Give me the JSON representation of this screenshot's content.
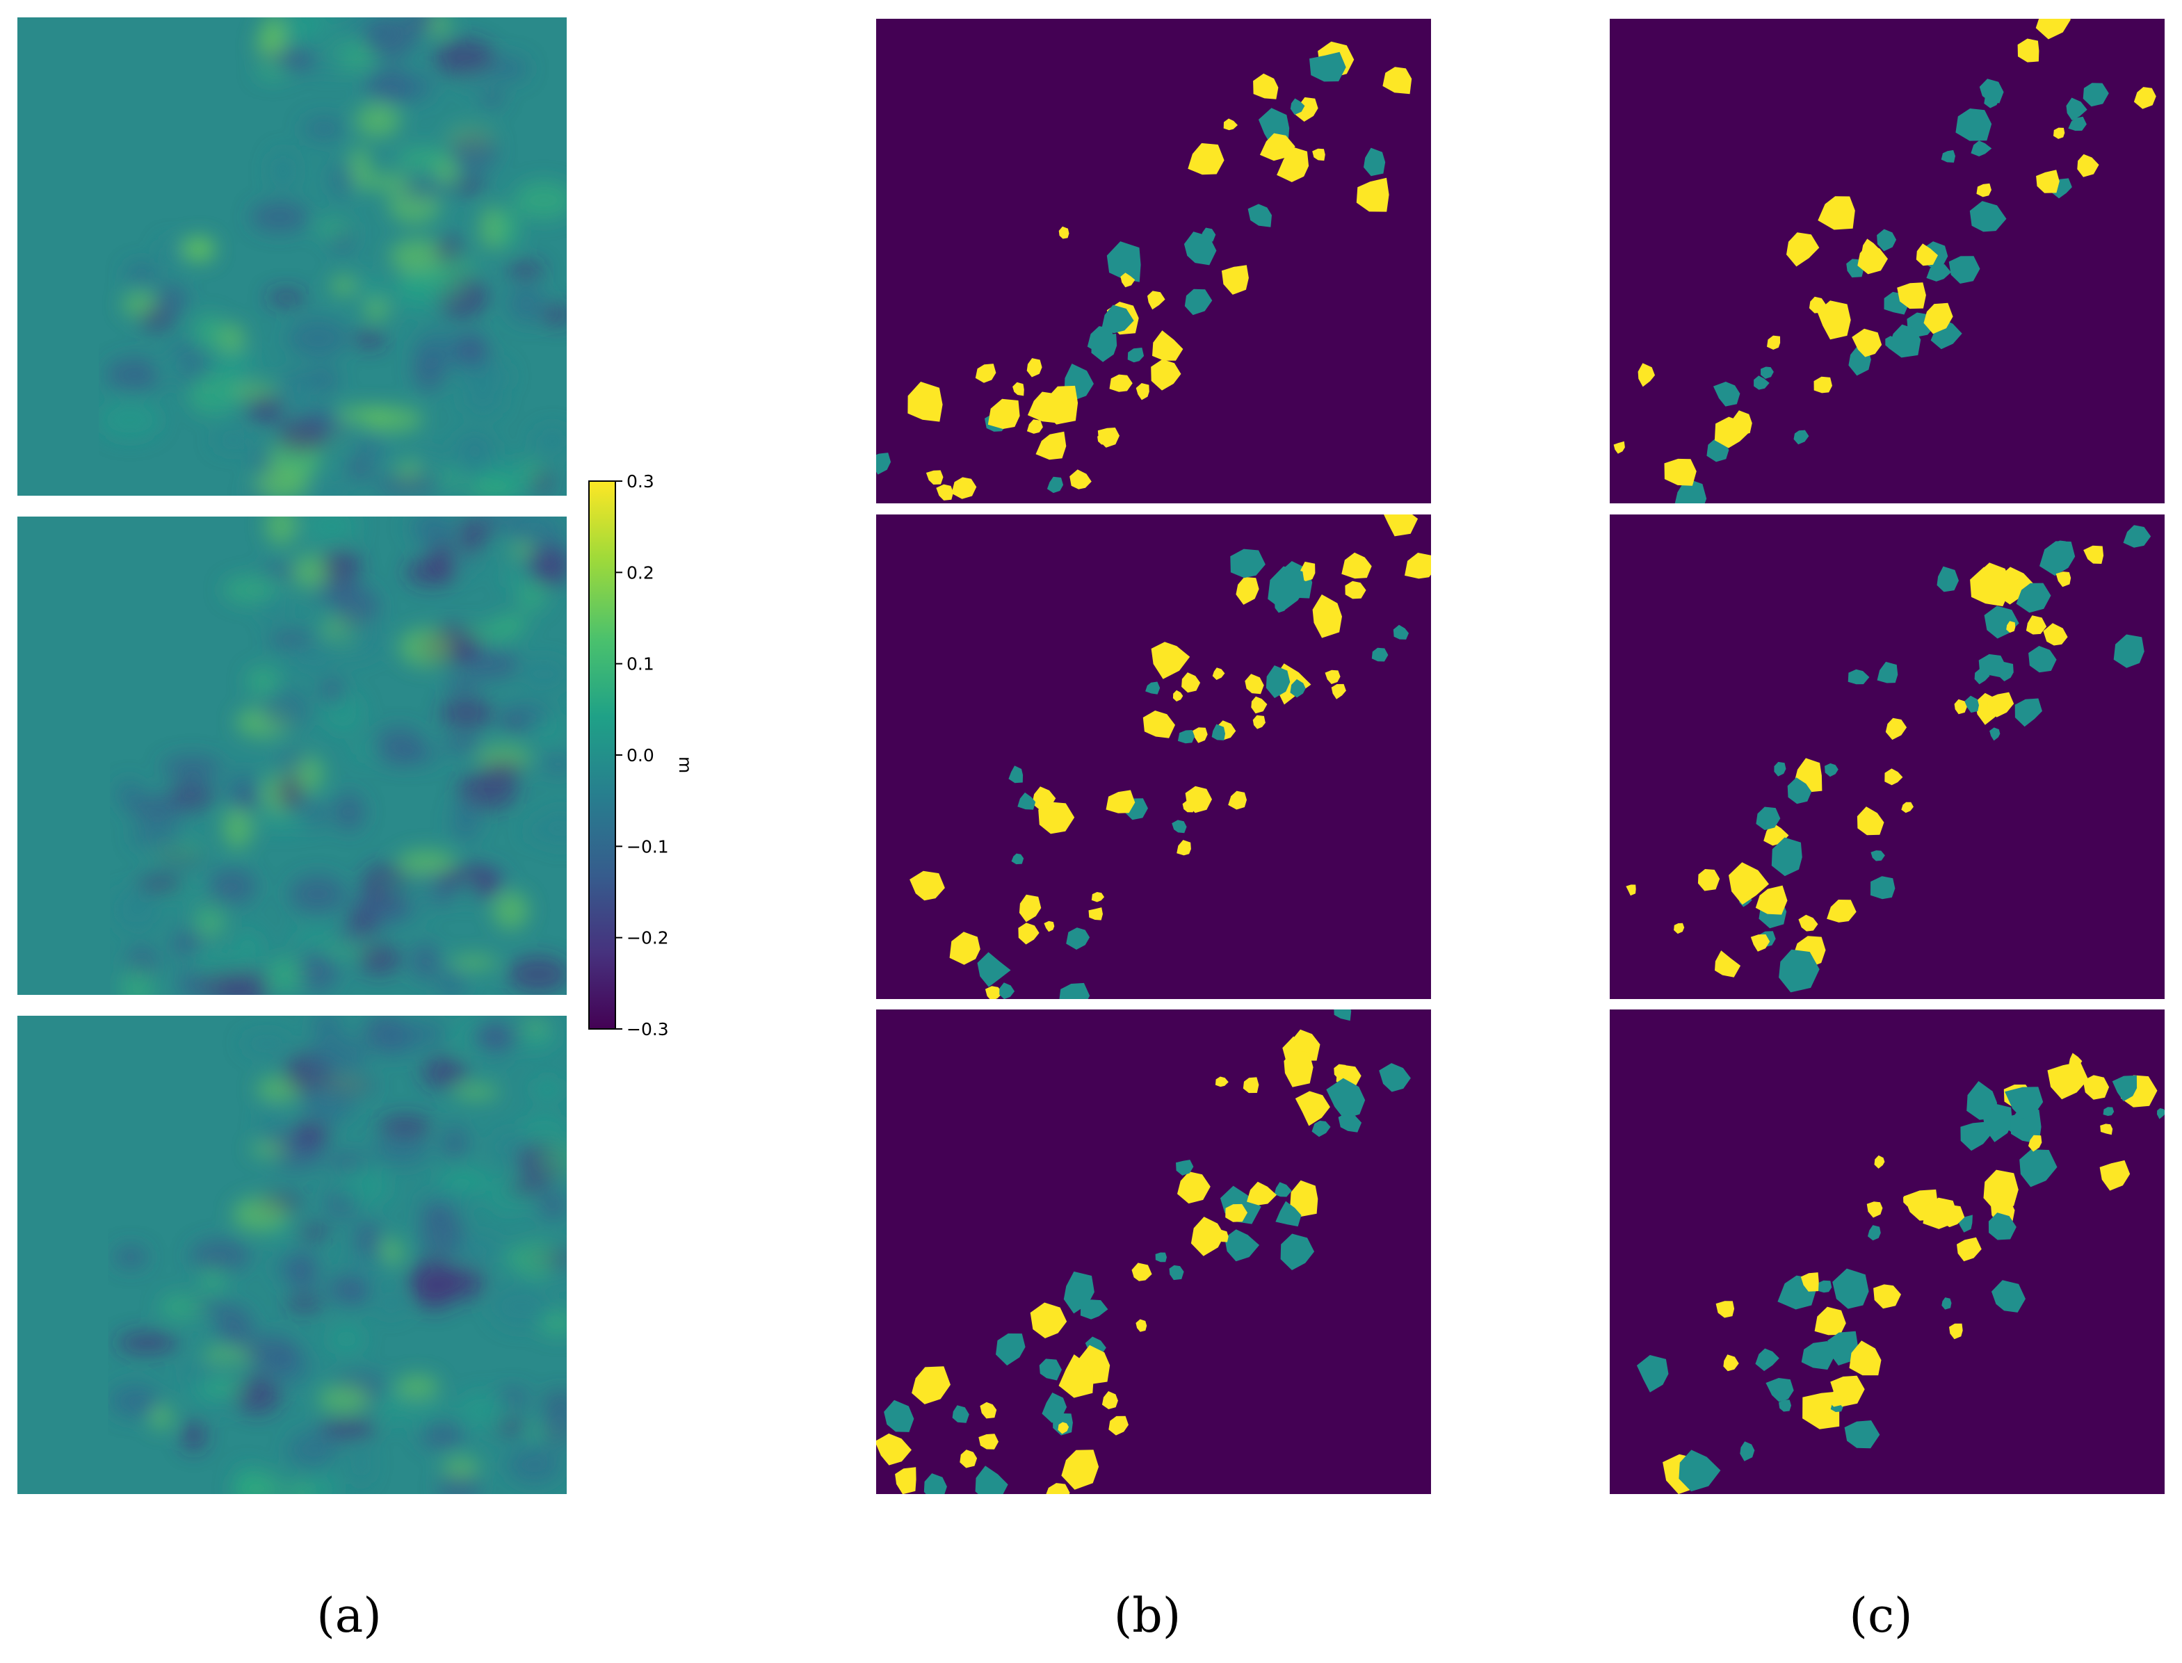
{
  "figure": {
    "captions": [
      "(a)",
      "(b)",
      "(c)"
    ]
  },
  "colorbar": {
    "unit": "m",
    "ticks": [
      {
        "value": 0.3,
        "label": "0.3"
      },
      {
        "value": 0.2,
        "label": "0.2"
      },
      {
        "value": 0.1,
        "label": "0.1"
      },
      {
        "value": 0.0,
        "label": "0.0"
      },
      {
        "value": -0.1,
        "label": "−0.1"
      },
      {
        "value": -0.2,
        "label": "−0.2"
      },
      {
        "value": -0.3,
        "label": "−0.3"
      }
    ],
    "range": [
      -0.3,
      0.3
    ]
  },
  "colors": {
    "viridis_dark": "#440154",
    "viridis_mid": "#21908d",
    "viridis_yellow": "#fde725",
    "background_teal": "#2a8a8a"
  },
  "columns": [
    {
      "id": "a",
      "type": "continuous-height-map",
      "rows": 3
    },
    {
      "id": "b",
      "type": "categorical-segmentation",
      "rows": 3
    },
    {
      "id": "c",
      "type": "categorical-segmentation",
      "rows": 3
    }
  ]
}
